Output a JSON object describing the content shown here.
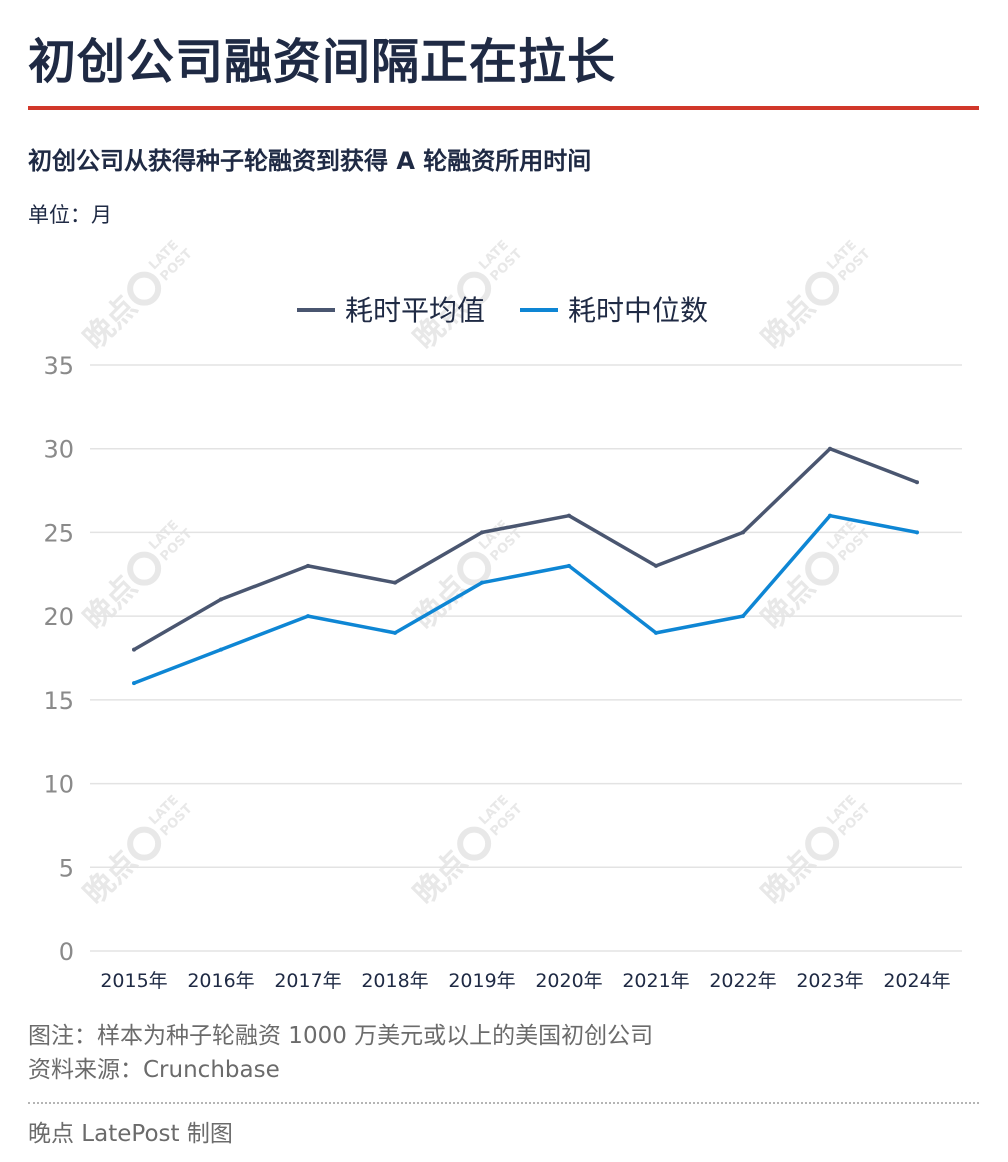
{
  "header": {
    "title": "初创公司融资间隔正在拉长",
    "subtitle": "初创公司从获得种子轮融资到获得 A 轮融资所用时间",
    "unit_label": "单位：月"
  },
  "colors": {
    "title": "#1f2a44",
    "accent_rule": "#d1372a",
    "series_mean": "#4a5670",
    "series_median": "#0e86d4",
    "grid": "#e3e3e3",
    "tick_text": "#8a8a8a",
    "note_text": "#6b6b6b"
  },
  "chart_data": {
    "type": "line",
    "categories": [
      "2015年",
      "2016年",
      "2017年",
      "2018年",
      "2019年",
      "2020年",
      "2021年",
      "2022年",
      "2023年",
      "2024年"
    ],
    "series": [
      {
        "name": "耗时平均值",
        "values": [
          18,
          21,
          23,
          22,
          25,
          26,
          23,
          25,
          30,
          28
        ]
      },
      {
        "name": "耗时中位数",
        "values": [
          16,
          18,
          20,
          19,
          22,
          23,
          19,
          20,
          26,
          25
        ]
      }
    ],
    "ylim": [
      0,
      35
    ],
    "yticks": [
      0,
      5,
      10,
      15,
      20,
      25,
      30,
      35
    ],
    "grid": true,
    "legend_position": "top-center"
  },
  "footer": {
    "note": "图注：样本为种子轮融资 1000 万美元或以上的美国初创公司",
    "source": "资料来源：Crunchbase",
    "credit": "晚点 LatePost 制图"
  },
  "watermark": {
    "text": "晚点",
    "brand": "LATE POST"
  }
}
